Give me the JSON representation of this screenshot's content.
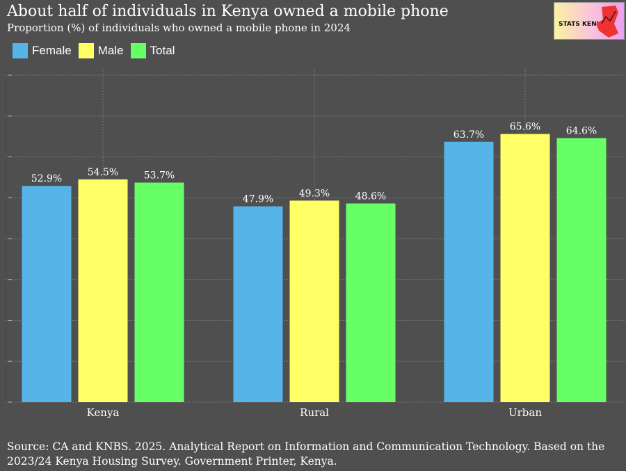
{
  "title": "About half of individuals in Kenya owned a mobile phone",
  "subtitle": "Proportion (%) of individuals who owned a mobile phone in 2024",
  "logo_text": "STATS KENYA",
  "source": "Source: CA and KNBS. 2025. Analytical Report on Information and Communication Technology. Based on the 2023/24 Kenya Housing Survey. Government Printer, Kenya.",
  "chart_data": {
    "type": "bar",
    "title": "About half of individuals in Kenya owned a mobile phone",
    "categories": [
      "Kenya",
      "Rural",
      "Urban"
    ],
    "series": [
      {
        "name": "Female",
        "color": "#56b4e9",
        "values": [
          52.9,
          47.9,
          63.7
        ]
      },
      {
        "name": "Male",
        "color": "#ffff66",
        "values": [
          54.5,
          49.3,
          65.6
        ]
      },
      {
        "name": "Total",
        "color": "#66ff66",
        "values": [
          53.7,
          48.6,
          64.6
        ]
      }
    ],
    "ylim": [
      0,
      80
    ],
    "grid": true,
    "legend": "top-left",
    "xlabel": "",
    "ylabel": ""
  }
}
